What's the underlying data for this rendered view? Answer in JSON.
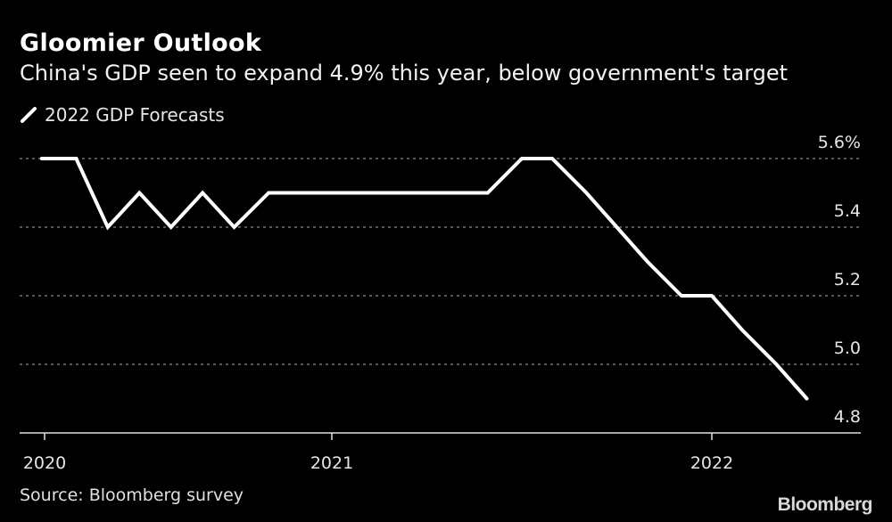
{
  "header": {
    "title": "Gloomier Outlook",
    "subtitle": "China's GDP seen to expand 4.9% this year, below government's target"
  },
  "footer": {
    "source": "Source: Bloomberg survey",
    "brand": "Bloomberg"
  },
  "chart_data": {
    "type": "line",
    "title": "Gloomier Outlook",
    "subtitle": "China's GDP seen to expand 4.9% this year, below government's target",
    "xlabel": "",
    "ylabel": "",
    "y_unit": "%",
    "ylim": [
      4.8,
      5.6
    ],
    "yticks": [
      5.6,
      5.4,
      5.2,
      5.0,
      4.8
    ],
    "ytick_labels": [
      "5.6%",
      "5.4",
      "5.2",
      "5.0",
      "4.8"
    ],
    "xticks": [
      2020,
      2021,
      2022
    ],
    "xtick_labels": [
      "2020",
      "2021",
      "2022"
    ],
    "grid": "horizontal-dotted",
    "legend_position": "top-left",
    "series": [
      {
        "name": "2022 GDP Forecasts",
        "color": "#ffffff",
        "x": [
          2019.99,
          2020.11,
          2020.22,
          2020.33,
          2020.44,
          2020.55,
          2020.66,
          2020.78,
          2021.41,
          2021.5,
          2021.58,
          2021.67,
          2021.75,
          2021.83,
          2021.92,
          2022.0,
          2022.08,
          2022.17,
          2022.25
        ],
        "values": [
          5.6,
          5.6,
          5.4,
          5.5,
          5.4,
          5.5,
          5.4,
          5.5,
          5.5,
          5.6,
          5.6,
          5.5,
          5.4,
          5.3,
          5.2,
          5.2,
          5.1,
          5.0,
          4.9
        ]
      }
    ]
  }
}
